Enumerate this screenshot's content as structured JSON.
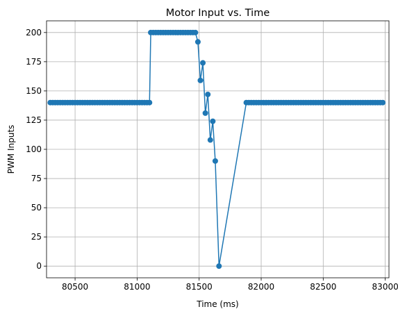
{
  "chart_data": {
    "type": "line",
    "title": "Motor Input vs. Time",
    "xlabel": "Time (ms)",
    "ylabel": "PWM Inputs",
    "xlim": [
      80270,
      83030
    ],
    "ylim": [
      -10,
      210
    ],
    "xticks": [
      80500,
      81000,
      81500,
      82000,
      82500,
      83000
    ],
    "yticks": [
      0,
      25,
      50,
      75,
      100,
      125,
      150,
      175,
      200
    ],
    "grid": true,
    "color": "#1f77b4",
    "marker": "circle",
    "series": [
      {
        "x": [
          80300,
          80320,
          80340,
          80360,
          80380,
          80400,
          80420,
          80440,
          80460,
          80480,
          80500,
          80520,
          80540,
          80560,
          80580,
          80600,
          80620,
          80640,
          80660,
          80680,
          80700,
          80720,
          80740,
          80760,
          80780,
          80800,
          80820,
          80840,
          80860,
          80880,
          80900,
          80920,
          80940,
          80960,
          80980,
          81000,
          81020,
          81040,
          81060,
          81080,
          81100,
          81110,
          81130,
          81150,
          81170,
          81190,
          81210,
          81230,
          81250,
          81270,
          81290,
          81310,
          81330,
          81350,
          81370,
          81390,
          81410,
          81430,
          81450,
          81470,
          81490,
          81510,
          81530,
          81550,
          81570,
          81590,
          81610,
          81630,
          81660,
          81880,
          81900,
          81920,
          81940,
          81960,
          81980,
          82000,
          82020,
          82040,
          82060,
          82080,
          82100,
          82120,
          82140,
          82160,
          82180,
          82200,
          82220,
          82240,
          82260,
          82280,
          82300,
          82320,
          82340,
          82360,
          82380,
          82400,
          82420,
          82440,
          82460,
          82480,
          82500,
          82520,
          82540,
          82560,
          82580,
          82600,
          82620,
          82640,
          82660,
          82680,
          82700,
          82720,
          82740,
          82760,
          82780,
          82800,
          82820,
          82840,
          82860,
          82880,
          82900,
          82920,
          82940,
          82960,
          82980
        ],
        "y": [
          140,
          140,
          140,
          140,
          140,
          140,
          140,
          140,
          140,
          140,
          140,
          140,
          140,
          140,
          140,
          140,
          140,
          140,
          140,
          140,
          140,
          140,
          140,
          140,
          140,
          140,
          140,
          140,
          140,
          140,
          140,
          140,
          140,
          140,
          140,
          140,
          140,
          140,
          140,
          140,
          140,
          200,
          200,
          200,
          200,
          200,
          200,
          200,
          200,
          200,
          200,
          200,
          200,
          200,
          200,
          200,
          200,
          200,
          200,
          200,
          192,
          159,
          174,
          131,
          147,
          108,
          124,
          90,
          0,
          140,
          140,
          140,
          140,
          140,
          140,
          140,
          140,
          140,
          140,
          140,
          140,
          140,
          140,
          140,
          140,
          140,
          140,
          140,
          140,
          140,
          140,
          140,
          140,
          140,
          140,
          140,
          140,
          140,
          140,
          140,
          140,
          140,
          140,
          140,
          140,
          140,
          140,
          140,
          140,
          140,
          140,
          140,
          140,
          140,
          140,
          140,
          140,
          140,
          140,
          140,
          140,
          140,
          140,
          140,
          140
        ]
      }
    ]
  }
}
